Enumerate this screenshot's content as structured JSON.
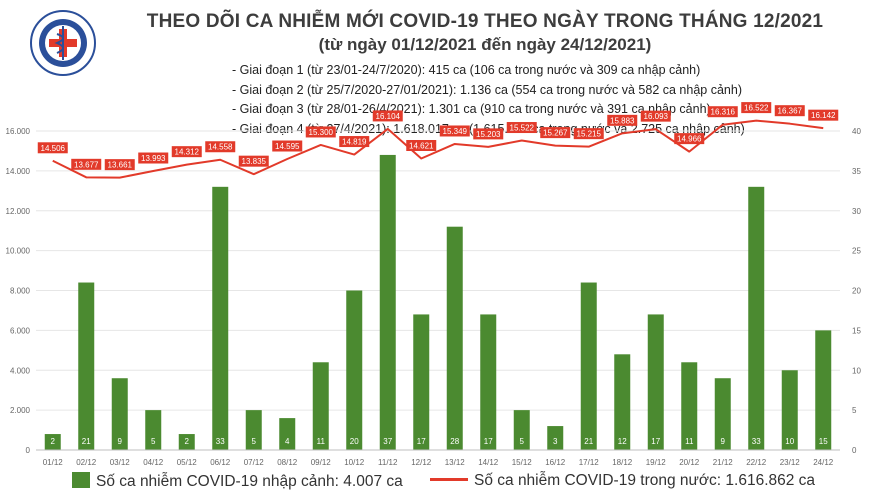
{
  "header": {
    "logo_text_top": "BỘ Y TẾ",
    "logo_text_bottom": "MINISTRY OF HEALTH",
    "title": "THEO DÕI CA NHIỄM MỚI COVID-19 THEO NGÀY TRONG THÁNG 12/2021",
    "subtitle": "(từ ngày 01/12/2021 đến ngày 24/12/2021)"
  },
  "phases": [
    "- Giai đoạn 1 (từ 23/01-24/7/2020): 415 ca (106 ca trong nước và 309 ca nhập cảnh)",
    "- Giai đoạn 2 (từ 25/7/2020-27/01/2021): 1.136 ca (554 ca trong nước và 582 ca nhập cảnh)",
    "- Giai đoạn 3 (từ 28/01-26/4/2021): 1.301 ca (910 ca trong nước và 391 ca nhập cảnh)",
    "- Giai đoạn 4 (từ 27/4/2021): 1.618.017 ca (1.615.292 ca trong nước và 2.725 ca nhập cảnh)"
  ],
  "legend": {
    "bar_label": "Số ca nhiễm COVID-19 nhập cảnh: 4.007 ca",
    "line_label": "Số ca nhiễm COVID-19 trong nước: 1.616.862 ca"
  },
  "colors": {
    "bar": "#4b8a30",
    "line": "#e23a2a",
    "line_label_bg": "#e23a2a",
    "grid": "#e6e6e6",
    "axis_text": "#666666"
  },
  "chart_data": {
    "type": "bar+line",
    "categories": [
      "01/12",
      "02/12",
      "03/12",
      "04/12",
      "05/12",
      "06/12",
      "07/12",
      "08/12",
      "09/12",
      "10/12",
      "11/12",
      "12/12",
      "13/12",
      "14/12",
      "15/12",
      "16/12",
      "17/12",
      "18/12",
      "19/12",
      "20/12",
      "21/12",
      "22/12",
      "23/12",
      "24/12"
    ],
    "series": [
      {
        "name": "Số ca nhiễm COVID-19 nhập cảnh: 4.007 ca",
        "type": "bar",
        "axis": "right",
        "values": [
          2,
          21,
          9,
          5,
          2,
          33,
          5,
          4,
          11,
          20,
          37,
          17,
          28,
          17,
          5,
          3,
          21,
          12,
          17,
          11,
          9,
          33,
          10,
          15
        ],
        "labels": [
          "2",
          "21",
          "9",
          "5",
          "2",
          "33",
          "5",
          "4",
          "11",
          "20",
          "37",
          "17",
          "28",
          "17",
          "5",
          "3",
          "21",
          "12",
          "17",
          "11",
          "9",
          "33",
          "10",
          "15"
        ]
      },
      {
        "name": "Số ca nhiễm COVID-19 trong nước: 1.616.862 ca",
        "type": "line",
        "axis": "left",
        "values": [
          14506,
          13677,
          13661,
          13993,
          14312,
          14558,
          13835,
          14595,
          15300,
          14819,
          16104,
          14621,
          15349,
          15203,
          15522,
          15267,
          15215,
          15883,
          16093,
          14966,
          16316,
          16522,
          16367,
          16142
        ],
        "labels": [
          "14.506",
          "13.677",
          "13.661",
          "13.993",
          "14.312",
          "14.558",
          "13.835",
          "14.595",
          "15.300",
          "14.819",
          "16.104",
          "14.621",
          "15.349",
          "15.203",
          "15.522",
          "15.267",
          "15.215",
          "15.883",
          "16.093",
          "14.966",
          "16.316",
          "16.522",
          "16.367",
          "16.142"
        ]
      }
    ],
    "y_left": {
      "min": 0,
      "max": 16000,
      "ticks": [
        0,
        2000,
        4000,
        6000,
        8000,
        10000,
        12000,
        14000,
        16000
      ],
      "tick_labels": [
        "0",
        "2.000",
        "4.000",
        "6.000",
        "8.000",
        "10.000",
        "12.000",
        "14.000",
        "16.000"
      ]
    },
    "y_right": {
      "min": 0,
      "max": 40,
      "ticks": [
        0,
        5,
        10,
        15,
        20,
        25,
        30,
        35,
        40
      ],
      "tick_labels": [
        "0",
        "5",
        "10",
        "15",
        "20",
        "25",
        "30",
        "35",
        "40"
      ]
    },
    "grid": true,
    "legend_position": "bottom"
  }
}
